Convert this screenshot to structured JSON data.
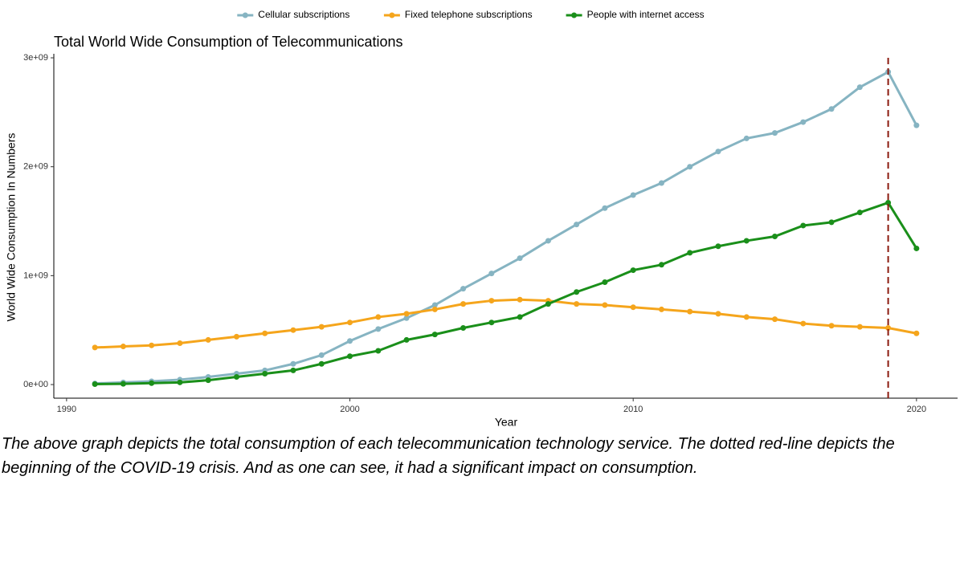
{
  "chart_data": {
    "type": "line",
    "title": "Total World Wide Consumption of Telecommunications",
    "x_label": "Year",
    "y_label": "World Wide Consumption In Numbers",
    "x": [
      1991,
      1992,
      1993,
      1994,
      1995,
      1996,
      1997,
      1998,
      1999,
      2000,
      2001,
      2002,
      2003,
      2004,
      2005,
      2006,
      2007,
      2008,
      2009,
      2010,
      2011,
      2012,
      2013,
      2014,
      2015,
      2016,
      2017,
      2018,
      2019,
      2020
    ],
    "series": [
      {
        "name": "Cellular subscriptions",
        "color": "#86b4c2",
        "values": [
          10000000.0,
          20000000.0,
          30000000.0,
          45000000.0,
          70000000.0,
          100000000.0,
          130000000.0,
          190000000.0,
          270000000.0,
          400000000.0,
          510000000.0,
          610000000.0,
          730000000.0,
          880000000.0,
          1020000000.0,
          1160000000.0,
          1320000000.0,
          1470000000.0,
          1620000000.0,
          1740000000.0,
          1850000000.0,
          2000000000.0,
          2140000000.0,
          2260000000.0,
          2310000000.0,
          2410000000.0,
          2530000000.0,
          2730000000.0,
          2870000000.0,
          2380000000.0
        ]
      },
      {
        "name": "Fixed telephone subscriptions",
        "color": "#f5a51c",
        "values": [
          340000000.0,
          350000000.0,
          360000000.0,
          380000000.0,
          410000000.0,
          440000000.0,
          470000000.0,
          500000000.0,
          530000000.0,
          570000000.0,
          620000000.0,
          650000000.0,
          690000000.0,
          740000000.0,
          770000000.0,
          780000000.0,
          770000000.0,
          740000000.0,
          730000000.0,
          710000000.0,
          690000000.0,
          670000000.0,
          650000000.0,
          620000000.0,
          600000000.0,
          560000000.0,
          540000000.0,
          530000000.0,
          520000000.0,
          470000000.0
        ]
      },
      {
        "name": "People with internet access",
        "color": "#1a8f1a",
        "values": [
          4000000.0,
          7000000.0,
          13000000.0,
          20000000.0,
          40000000.0,
          70000000.0,
          100000000.0,
          130000000.0,
          190000000.0,
          260000000.0,
          310000000.0,
          410000000.0,
          460000000.0,
          520000000.0,
          570000000.0,
          620000000.0,
          740000000.0,
          850000000.0,
          940000000.0,
          1050000000.0,
          1100000000.0,
          1210000000.0,
          1270000000.0,
          1320000000.0,
          1360000000.0,
          1460000000.0,
          1490000000.0,
          1580000000.0,
          1670000000.0,
          1250000000.0
        ]
      }
    ],
    "reference_line_x": 2019,
    "reference_line_color": "#8b1a0e",
    "xlim": [
      1989.55,
      2021.45
    ],
    "xticks": [
      1990,
      2000,
      2010,
      2020
    ],
    "ylim": [
      -125000000.0,
      3037000000.0
    ],
    "yticks": [
      {
        "value": 0,
        "label": "0e+00"
      },
      {
        "value": 1000000000.0,
        "label": "1e+09"
      },
      {
        "value": 2000000000.0,
        "label": "2e+09"
      },
      {
        "value": 3000000000.0,
        "label": "3e+09"
      }
    ],
    "grid": false,
    "legend_position": "top"
  },
  "caption": "The above graph depicts the total consumption of each telecommunication technology service. The dotted red-line depicts the beginning of the COVID-19 crisis. And as one can see, it had a significant impact on consumption."
}
